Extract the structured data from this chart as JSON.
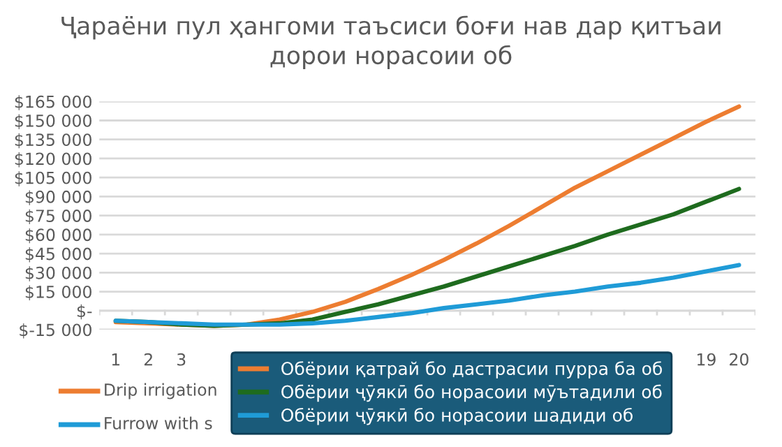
{
  "chart_data": {
    "type": "line",
    "title": "Ҷараёни пул ҳангоми таъсиси боғи нав дар қитъаи\nдорои норасоии об",
    "categories": [
      "1",
      "2",
      "3",
      null,
      null,
      null,
      null,
      null,
      null,
      null,
      null,
      null,
      null,
      null,
      null,
      null,
      null,
      null,
      "19",
      "20"
    ],
    "series": [
      {
        "name": "Обёрии қатрай бо дастрасии пурра ба об",
        "color": "#ed7d31",
        "values": [
          -9000,
          -10000,
          -11000,
          -12000,
          -11000,
          -7000,
          -1000,
          7000,
          17000,
          28000,
          40000,
          53000,
          67000,
          82000,
          97000,
          110000,
          123000,
          136000,
          149000,
          161000
        ]
      },
      {
        "name": "Обёрии ҷӯякӣ бо норасоии мӯътадили об",
        "color": "#1e6b1e",
        "values": [
          -8000,
          -9000,
          -11000,
          -12000,
          -11000,
          -10000,
          -7000,
          -1000,
          5000,
          12000,
          19000,
          27000,
          35000,
          43000,
          51000,
          60000,
          68000,
          76000,
          86000,
          96000
        ]
      },
      {
        "name": "Обёрии ҷӯякӣ бо норасоии шадиди об",
        "color": "#1f9bd7",
        "values": [
          -8000,
          -9000,
          -10000,
          -11000,
          -11000,
          -11000,
          -10000,
          -8000,
          -5000,
          -2000,
          2000,
          5000,
          8000,
          12000,
          15000,
          19000,
          22000,
          26000,
          31000,
          36000
        ]
      }
    ],
    "ylim": [
      -15000,
      165000
    ],
    "yticks": [
      {
        "value": -15000,
        "label": "$-15 000"
      },
      {
        "value": 0,
        "label": "$-"
      },
      {
        "value": 15000,
        "label": "$15 000"
      },
      {
        "value": 30000,
        "label": "$30 000"
      },
      {
        "value": 45000,
        "label": "$45 000"
      },
      {
        "value": 60000,
        "label": "$60 000"
      },
      {
        "value": 75000,
        "label": "$75 000"
      },
      {
        "value": 90000,
        "label": "$90 000"
      },
      {
        "value": 105000,
        "label": "$105 000"
      },
      {
        "value": 120000,
        "label": "$120 000"
      },
      {
        "value": 135000,
        "label": "$135 000"
      },
      {
        "value": 150000,
        "label": "$150 000"
      },
      {
        "value": 165000,
        "label": "$165 000"
      }
    ],
    "grid": "y",
    "legend": "bottom",
    "marker": "none",
    "line_style": "solid",
    "annotations": [
      "Drip irrigation",
      "Furrow with s"
    ]
  }
}
